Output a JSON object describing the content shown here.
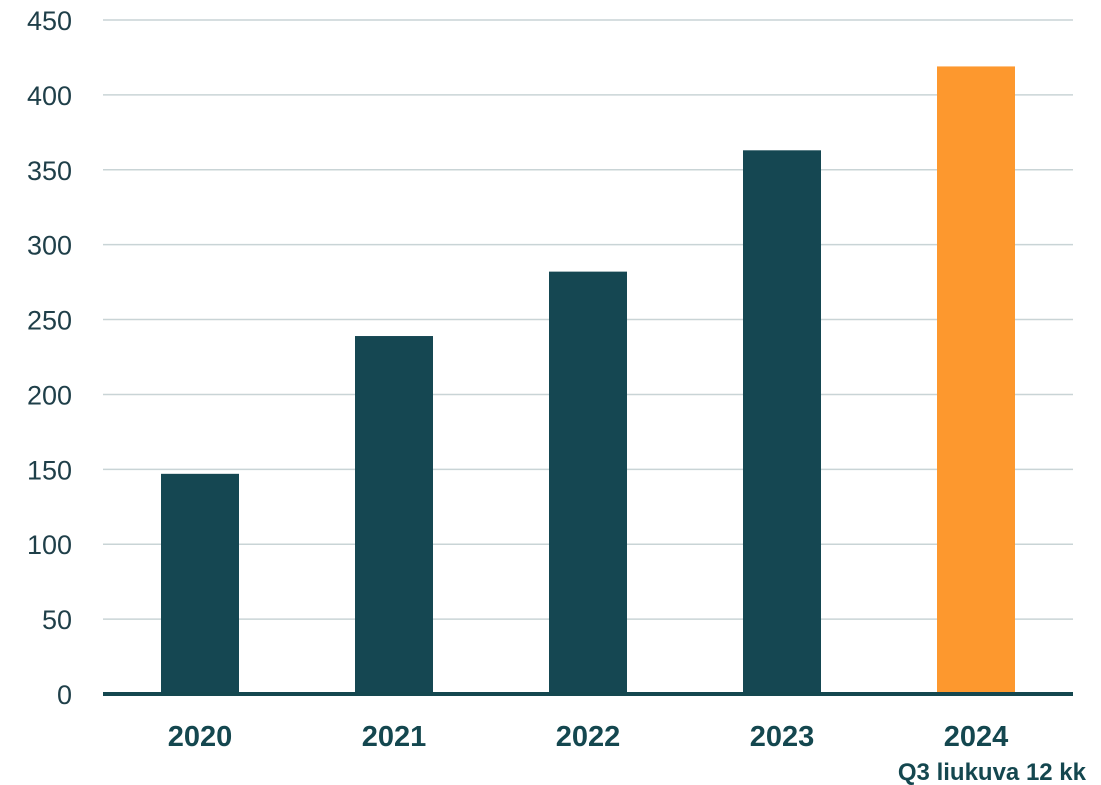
{
  "chart_data": {
    "type": "bar",
    "categories": [
      "2020",
      "2021",
      "2022",
      "2023",
      "2024"
    ],
    "category_sublabels": [
      "",
      "",
      "",
      "",
      "Q3 liukuva 12 kk"
    ],
    "values": [
      147,
      239,
      282,
      363,
      419
    ],
    "highlight_index": 4,
    "ylim": [
      0,
      450
    ],
    "yticks": [
      0,
      50,
      100,
      150,
      200,
      250,
      300,
      350,
      400,
      450
    ],
    "grid": true,
    "title": "",
    "xlabel": "",
    "ylabel": "",
    "colors": {
      "bar": "#154752",
      "highlight": "#fd982e",
      "grid": "#c9d4d6",
      "baseline": "#14474f"
    }
  }
}
